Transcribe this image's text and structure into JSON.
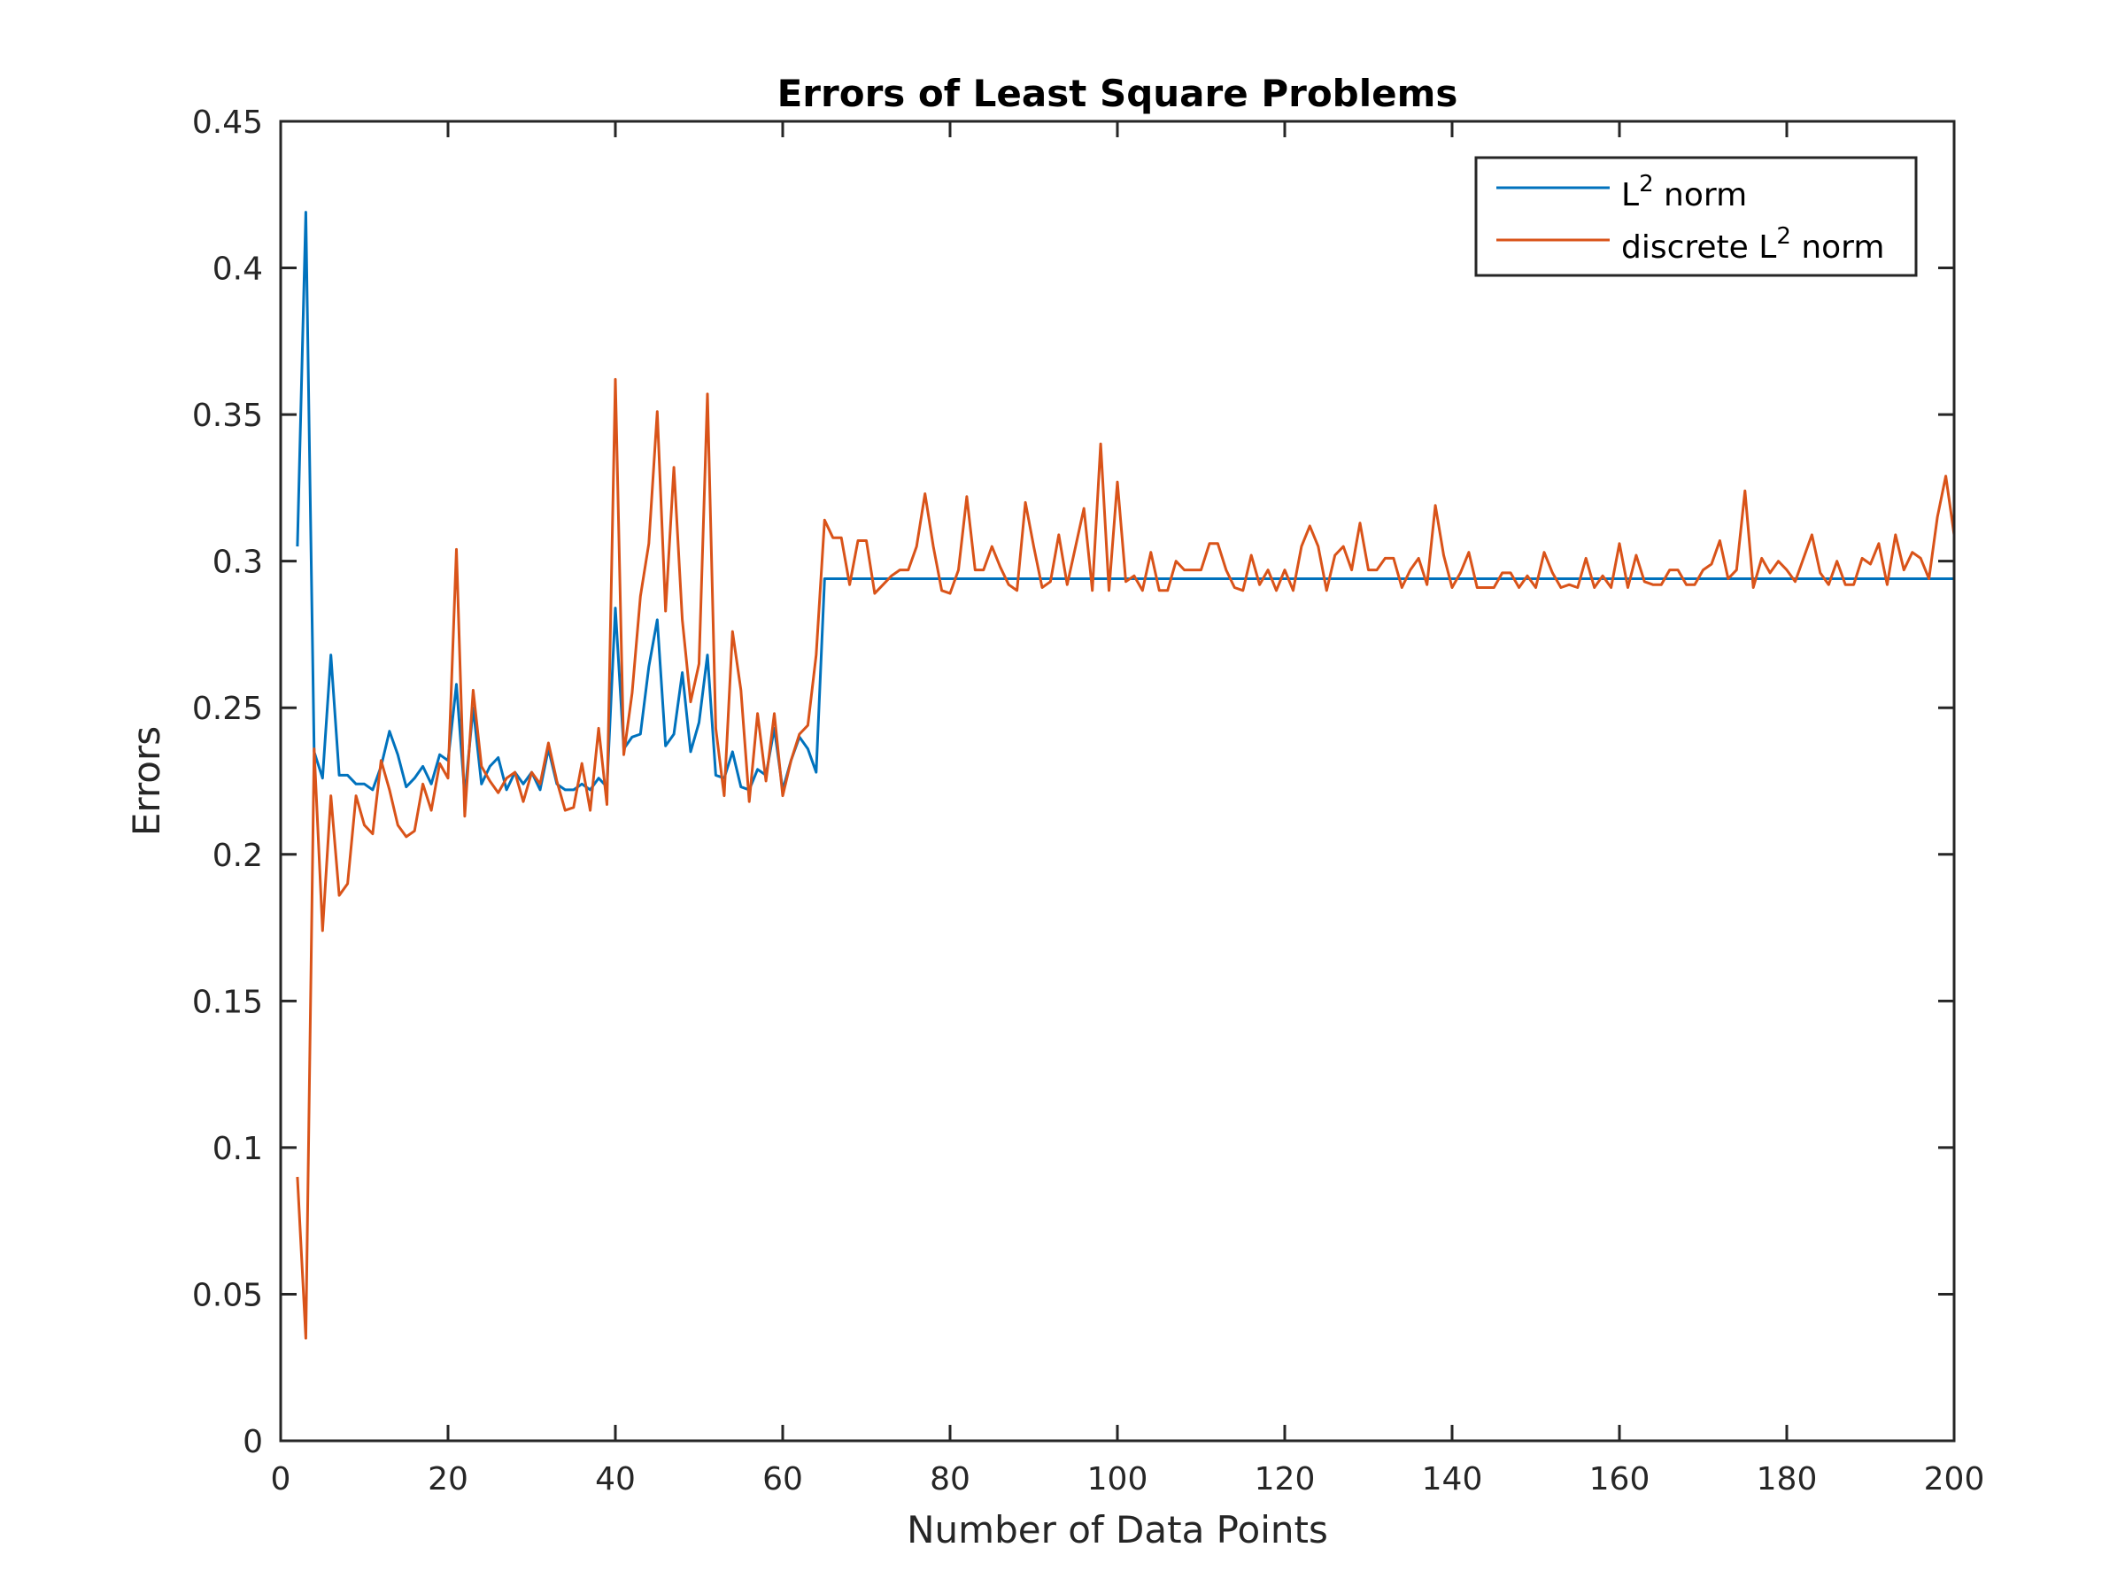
{
  "chart_data": {
    "type": "line",
    "title": "Errors of Least Square Problems",
    "xlabel": "Number of Data Points",
    "ylabel": "Errors",
    "xlim": [
      0,
      200
    ],
    "ylim": [
      0,
      0.45
    ],
    "xticks": [
      0,
      20,
      40,
      60,
      80,
      100,
      120,
      140,
      160,
      180,
      200
    ],
    "yticks": [
      0,
      0.05,
      0.1,
      0.15,
      0.2,
      0.25,
      0.3,
      0.35,
      0.4,
      0.45
    ],
    "xtick_labels": [
      "0",
      "20",
      "40",
      "60",
      "80",
      "100",
      "120",
      "140",
      "160",
      "180",
      "200"
    ],
    "ytick_labels": [
      "0",
      "0.05",
      "0.1",
      "0.15",
      "0.2",
      "0.25",
      "0.3",
      "0.35",
      "0.4",
      "0.45"
    ],
    "grid": false,
    "legend_position": "top-right",
    "series": [
      {
        "name": "L2 norm",
        "label_base": "L",
        "label_sup": "2",
        "label_rest": " norm",
        "color": "#0072BD",
        "x": [
          2,
          3,
          4,
          5,
          6,
          7,
          8,
          9,
          10,
          11,
          12,
          13,
          14,
          15,
          16,
          17,
          18,
          19,
          20,
          21,
          22,
          23,
          24,
          25,
          26,
          27,
          28,
          29,
          30,
          31,
          32,
          33,
          34,
          35,
          36,
          37,
          38,
          39,
          40,
          41,
          42,
          43,
          44,
          45,
          46,
          47,
          48,
          49,
          50,
          51,
          52,
          53,
          54,
          55,
          56,
          57,
          58,
          59,
          60,
          61,
          62,
          63,
          64,
          65,
          200
        ],
        "y": [
          0.305,
          0.419,
          0.235,
          0.226,
          0.268,
          0.227,
          0.227,
          0.224,
          0.224,
          0.222,
          0.23,
          0.242,
          0.234,
          0.223,
          0.226,
          0.23,
          0.224,
          0.234,
          0.232,
          0.258,
          0.22,
          0.25,
          0.224,
          0.23,
          0.233,
          0.222,
          0.228,
          0.224,
          0.228,
          0.222,
          0.236,
          0.224,
          0.222,
          0.222,
          0.224,
          0.222,
          0.226,
          0.223,
          0.284,
          0.236,
          0.24,
          0.241,
          0.264,
          0.28,
          0.237,
          0.241,
          0.262,
          0.235,
          0.245,
          0.268,
          0.227,
          0.226,
          0.235,
          0.223,
          0.222,
          0.229,
          0.227,
          0.243,
          0.222,
          0.232,
          0.24,
          0.236,
          0.228,
          0.294,
          0.294
        ]
      },
      {
        "name": "discrete L2 norm",
        "label_base": "discrete L",
        "label_sup": "2",
        "label_rest": " norm",
        "color": "#D95319",
        "x": [
          2,
          3,
          4,
          5,
          6,
          7,
          8,
          9,
          10,
          11,
          12,
          13,
          14,
          15,
          16,
          17,
          18,
          19,
          20,
          21,
          22,
          23,
          24,
          25,
          26,
          27,
          28,
          29,
          30,
          31,
          32,
          33,
          34,
          35,
          36,
          37,
          38,
          39,
          40,
          41,
          42,
          43,
          44,
          45,
          46,
          47,
          48,
          49,
          50,
          51,
          52,
          53,
          54,
          55,
          56,
          57,
          58,
          59,
          60,
          61,
          62,
          63,
          64,
          65,
          66,
          67,
          68,
          69,
          70,
          71,
          72,
          73,
          74,
          75,
          76,
          77,
          78,
          79,
          80,
          81,
          82,
          83,
          84,
          85,
          86,
          87,
          88,
          89,
          90,
          91,
          92,
          93,
          94,
          95,
          96,
          97,
          98,
          99,
          100,
          101,
          102,
          103,
          104,
          105,
          106,
          107,
          108,
          109,
          110,
          111,
          112,
          113,
          114,
          115,
          116,
          117,
          118,
          119,
          120,
          121,
          122,
          123,
          124,
          125,
          126,
          127,
          128,
          129,
          130,
          131,
          132,
          133,
          134,
          135,
          136,
          137,
          138,
          139,
          140,
          141,
          142,
          143,
          144,
          145,
          146,
          147,
          148,
          149,
          150,
          151,
          152,
          153,
          154,
          155,
          156,
          157,
          158,
          159,
          160,
          161,
          162,
          163,
          164,
          165,
          166,
          167,
          168,
          169,
          170,
          171,
          172,
          173,
          174,
          175,
          176,
          177,
          178,
          179,
          180,
          181,
          182,
          183,
          184,
          185,
          186,
          187,
          188,
          189,
          190,
          191,
          192,
          193,
          194,
          195,
          196,
          197,
          198,
          199,
          200
        ],
        "y": [
          0.09,
          0.035,
          0.236,
          0.174,
          0.22,
          0.186,
          0.19,
          0.22,
          0.21,
          0.207,
          0.232,
          0.222,
          0.21,
          0.206,
          0.208,
          0.224,
          0.215,
          0.231,
          0.226,
          0.304,
          0.213,
          0.256,
          0.23,
          0.225,
          0.221,
          0.226,
          0.228,
          0.218,
          0.228,
          0.224,
          0.238,
          0.225,
          0.215,
          0.216,
          0.231,
          0.215,
          0.243,
          0.217,
          0.362,
          0.234,
          0.255,
          0.288,
          0.306,
          0.351,
          0.283,
          0.332,
          0.28,
          0.252,
          0.265,
          0.357,
          0.243,
          0.22,
          0.276,
          0.256,
          0.218,
          0.248,
          0.225,
          0.248,
          0.22,
          0.232,
          0.241,
          0.244,
          0.268,
          0.314,
          0.308,
          0.308,
          0.292,
          0.307,
          0.307,
          0.289,
          0.292,
          0.295,
          0.297,
          0.297,
          0.305,
          0.323,
          0.305,
          0.29,
          0.289,
          0.297,
          0.322,
          0.297,
          0.297,
          0.305,
          0.298,
          0.292,
          0.29,
          0.32,
          0.305,
          0.291,
          0.293,
          0.309,
          0.292,
          0.305,
          0.318,
          0.29,
          0.34,
          0.29,
          0.327,
          0.293,
          0.295,
          0.29,
          0.303,
          0.29,
          0.29,
          0.3,
          0.297,
          0.297,
          0.297,
          0.306,
          0.306,
          0.297,
          0.291,
          0.29,
          0.302,
          0.292,
          0.297,
          0.29,
          0.297,
          0.29,
          0.305,
          0.312,
          0.305,
          0.29,
          0.302,
          0.305,
          0.297,
          0.313,
          0.297,
          0.297,
          0.301,
          0.301,
          0.291,
          0.297,
          0.301,
          0.292,
          0.319,
          0.302,
          0.291,
          0.296,
          0.303,
          0.291,
          0.291,
          0.291,
          0.296,
          0.296,
          0.291,
          0.295,
          0.291,
          0.303,
          0.296,
          0.291,
          0.292,
          0.291,
          0.301,
          0.291,
          0.295,
          0.291,
          0.306,
          0.291,
          0.302,
          0.293,
          0.292,
          0.292,
          0.297,
          0.297,
          0.292,
          0.292,
          0.297,
          0.299,
          0.307,
          0.294,
          0.297,
          0.324,
          0.291,
          0.301,
          0.296,
          0.3,
          0.297,
          0.293,
          0.301,
          0.309,
          0.296,
          0.292,
          0.3,
          0.292,
          0.292,
          0.301,
          0.299,
          0.306,
          0.292,
          0.309,
          0.297,
          0.303,
          0.301,
          0.294,
          0.315,
          0.329,
          0.309
        ]
      }
    ]
  }
}
